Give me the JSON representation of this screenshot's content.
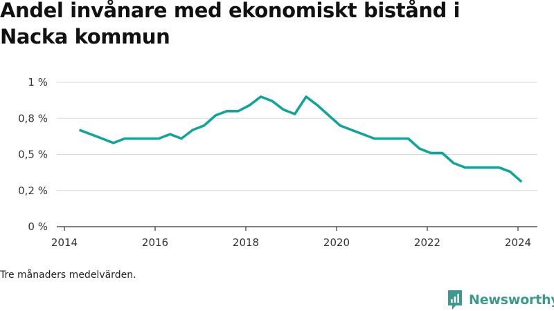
{
  "title": "Andel invånare med ekonomiskt bistånd i Nacka kommun",
  "note": "Tre månaders medelvärden.",
  "brand": {
    "name": "Newsworthy",
    "icon": "newsworthy-logo-icon",
    "color": "#3a9a8f"
  },
  "chart_data": {
    "type": "line",
    "title": "Andel invånare med ekonomiskt bistånd i Nacka kommun",
    "xlabel": "",
    "ylabel": "",
    "xlim": [
      2014,
      2024.6
    ],
    "ylim": [
      0,
      1.0
    ],
    "x_ticks": [
      {
        "value": 2014,
        "label": "2014"
      },
      {
        "value": 2016,
        "label": "2016"
      },
      {
        "value": 2018,
        "label": "2018"
      },
      {
        "value": 2020,
        "label": "2020"
      },
      {
        "value": 2022,
        "label": "2022"
      },
      {
        "value": 2024,
        "label": "2024"
      }
    ],
    "y_ticks": [
      {
        "value": 0,
        "label": "0 %"
      },
      {
        "value": 0.25,
        "label": "0,2 %"
      },
      {
        "value": 0.5,
        "label": "0,5 %"
      },
      {
        "value": 0.75,
        "label": "0,8 %"
      },
      {
        "value": 1.0,
        "label": "1 %"
      }
    ],
    "grid": true,
    "line_color": "#0ea69b",
    "series": [
      {
        "x": [
          2014.33,
          2014.58,
          2014.83,
          2015.08,
          2015.33,
          2015.58,
          2015.83,
          2016.08,
          2016.33,
          2016.58,
          2016.83,
          2017.08,
          2017.33,
          2017.58,
          2017.83,
          2018.08,
          2018.33,
          2018.58,
          2018.83,
          2019.08,
          2019.33,
          2019.58,
          2019.83,
          2020.08,
          2020.33,
          2020.58,
          2020.83,
          2021.08,
          2021.33,
          2021.58,
          2021.83,
          2022.08,
          2022.33,
          2022.58,
          2022.83,
          2023.08,
          2023.33,
          2023.58,
          2023.83,
          2024.08
        ],
        "values": [
          0.67,
          0.64,
          0.61,
          0.58,
          0.61,
          0.61,
          0.61,
          0.61,
          0.64,
          0.61,
          0.67,
          0.7,
          0.77,
          0.8,
          0.8,
          0.84,
          0.9,
          0.87,
          0.81,
          0.78,
          0.9,
          0.84,
          0.77,
          0.7,
          0.67,
          0.64,
          0.61,
          0.61,
          0.61,
          0.61,
          0.54,
          0.51,
          0.51,
          0.44,
          0.41,
          0.41,
          0.41,
          0.41,
          0.38,
          0.31
        ]
      }
    ]
  }
}
